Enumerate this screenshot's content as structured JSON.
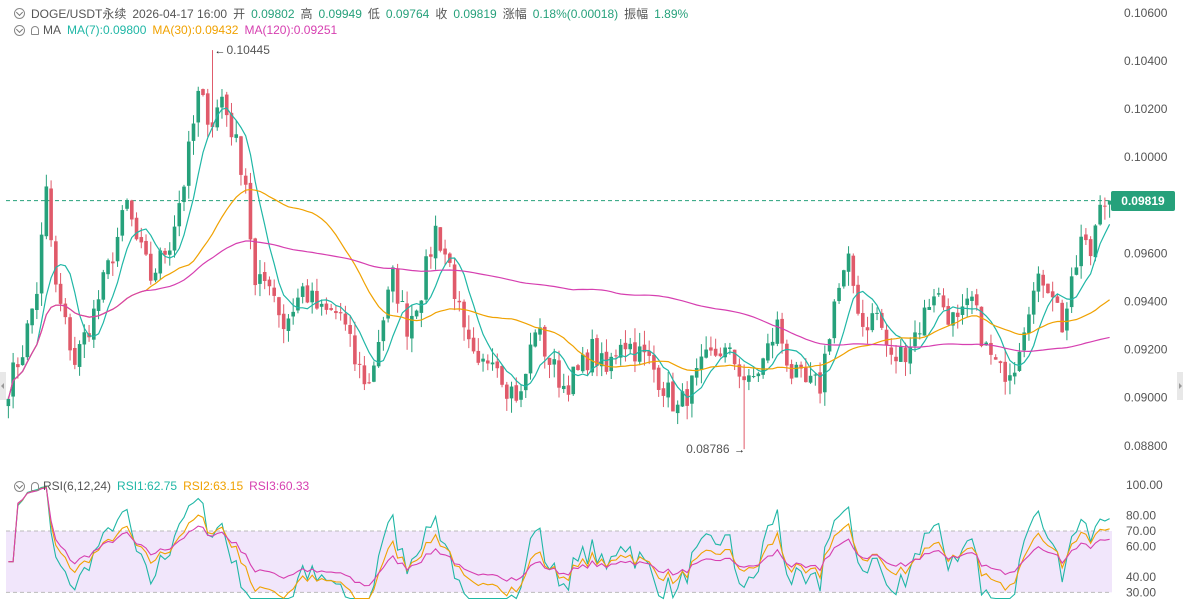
{
  "header": {
    "symbol": "DOGE/USDT永续",
    "datetime": "2026-04-17 16:00",
    "open_label": "开",
    "open": "0.09802",
    "high_label": "高",
    "high": "0.09949",
    "low_label": "低",
    "low": "0.09764",
    "close_label": "收",
    "close": "0.09819",
    "change_label": "涨幅",
    "change": "0.18%(0.00018)",
    "amplitude_label": "振幅",
    "amplitude": "1.89%"
  },
  "ma_legend": {
    "name": "MA",
    "ma7": "MA(7):0.09800",
    "ma30": "MA(30):0.09432",
    "ma120": "MA(120):0.09251"
  },
  "rsi_legend": {
    "name": "RSI(6,12,24)",
    "rsi1": "RSI1:62.75",
    "rsi2": "RSI2:63.15",
    "rsi3": "RSI3:60.33"
  },
  "annotations": {
    "high_marker": "0.10445",
    "low_marker": "0.08786"
  },
  "current_price": "0.09819",
  "colors": {
    "up": "#26a17b",
    "down": "#e05a6a",
    "ma7": "#20b7a6",
    "ma30": "#f0a202",
    "ma120": "#d63fb0",
    "rsi_band": "#f1e6fb"
  },
  "chart_data": [
    {
      "type": "candlestick",
      "y_ticks": [
        "0.10600",
        "0.10400",
        "0.10200",
        "0.10000",
        "0.09800",
        "0.09600",
        "0.09400",
        "0.09200",
        "0.09000",
        "0.08800"
      ],
      "ylim": [
        0.0872,
        0.1062
      ],
      "current_price": 0.09819,
      "high_marker": 0.10445,
      "low_marker": 0.08786,
      "grid": false,
      "price_anchors": [
        [
          0,
          0.0905
        ],
        [
          3,
          0.092
        ],
        [
          6,
          0.0945
        ],
        [
          8,
          0.0985
        ],
        [
          10,
          0.0945
        ],
        [
          14,
          0.0915
        ],
        [
          18,
          0.0935
        ],
        [
          22,
          0.096
        ],
        [
          25,
          0.098
        ],
        [
          27,
          0.0965
        ],
        [
          30,
          0.095
        ],
        [
          34,
          0.0965
        ],
        [
          37,
          0.099
        ],
        [
          40,
          0.1025
        ],
        [
          43,
          0.1015
        ],
        [
          45,
          0.1025
        ],
        [
          48,
          0.1005
        ],
        [
          50,
          0.099
        ],
        [
          52,
          0.0945
        ],
        [
          55,
          0.095
        ],
        [
          58,
          0.093
        ],
        [
          62,
          0.0945
        ],
        [
          66,
          0.0935
        ],
        [
          70,
          0.0935
        ],
        [
          73,
          0.0915
        ],
        [
          76,
          0.0905
        ],
        [
          78,
          0.0925
        ],
        [
          81,
          0.095
        ],
        [
          84,
          0.093
        ],
        [
          87,
          0.0945
        ],
        [
          90,
          0.097
        ],
        [
          93,
          0.0955
        ],
        [
          96,
          0.0925
        ],
        [
          99,
          0.091
        ],
        [
          102,
          0.092
        ],
        [
          105,
          0.0905
        ],
        [
          108,
          0.09
        ],
        [
          111,
          0.093
        ],
        [
          114,
          0.0915
        ],
        [
          117,
          0.0905
        ],
        [
          120,
          0.091
        ],
        [
          123,
          0.092
        ],
        [
          126,
          0.091
        ],
        [
          129,
          0.0925
        ],
        [
          132,
          0.092
        ],
        [
          135,
          0.0915
        ],
        [
          138,
          0.0905
        ],
        [
          141,
          0.0895
        ],
        [
          144,
          0.0905
        ],
        [
          147,
          0.0915
        ],
        [
          150,
          0.092
        ],
        [
          153,
          0.0915
        ],
        [
          156,
          0.0905
        ],
        [
          159,
          0.0915
        ],
        [
          162,
          0.093
        ],
        [
          165,
          0.091
        ],
        [
          168,
          0.0905
        ],
        [
          171,
          0.0905
        ],
        [
          174,
          0.094
        ],
        [
          177,
          0.0955
        ],
        [
          180,
          0.093
        ],
        [
          183,
          0.0935
        ],
        [
          186,
          0.0915
        ],
        [
          189,
          0.092
        ],
        [
          192,
          0.093
        ],
        [
          195,
          0.0945
        ],
        [
          198,
          0.0935
        ],
        [
          200,
          0.093
        ],
        [
          203,
          0.094
        ],
        [
          206,
          0.092
        ],
        [
          209,
          0.091
        ],
        [
          212,
          0.0915
        ],
        [
          215,
          0.094
        ],
        [
          218,
          0.095
        ],
        [
          220,
          0.0945
        ],
        [
          222,
          0.093
        ],
        [
          224,
          0.0945
        ],
        [
          226,
          0.0965
        ],
        [
          228,
          0.096
        ],
        [
          230,
          0.0985
        ],
        [
          232,
          0.098
        ]
      ],
      "ma_series": [
        "MA(7)",
        "MA(30)",
        "MA(120)"
      ]
    },
    {
      "type": "line",
      "name": "RSI(6,12,24)",
      "y_ticks": [
        "100.00",
        "80.00",
        "70.00",
        "60.00",
        "40.00",
        "30.00"
      ],
      "ylim": [
        25,
        100
      ],
      "band": [
        30,
        70
      ],
      "series": [
        "RSI1",
        "RSI2",
        "RSI3"
      ]
    }
  ]
}
